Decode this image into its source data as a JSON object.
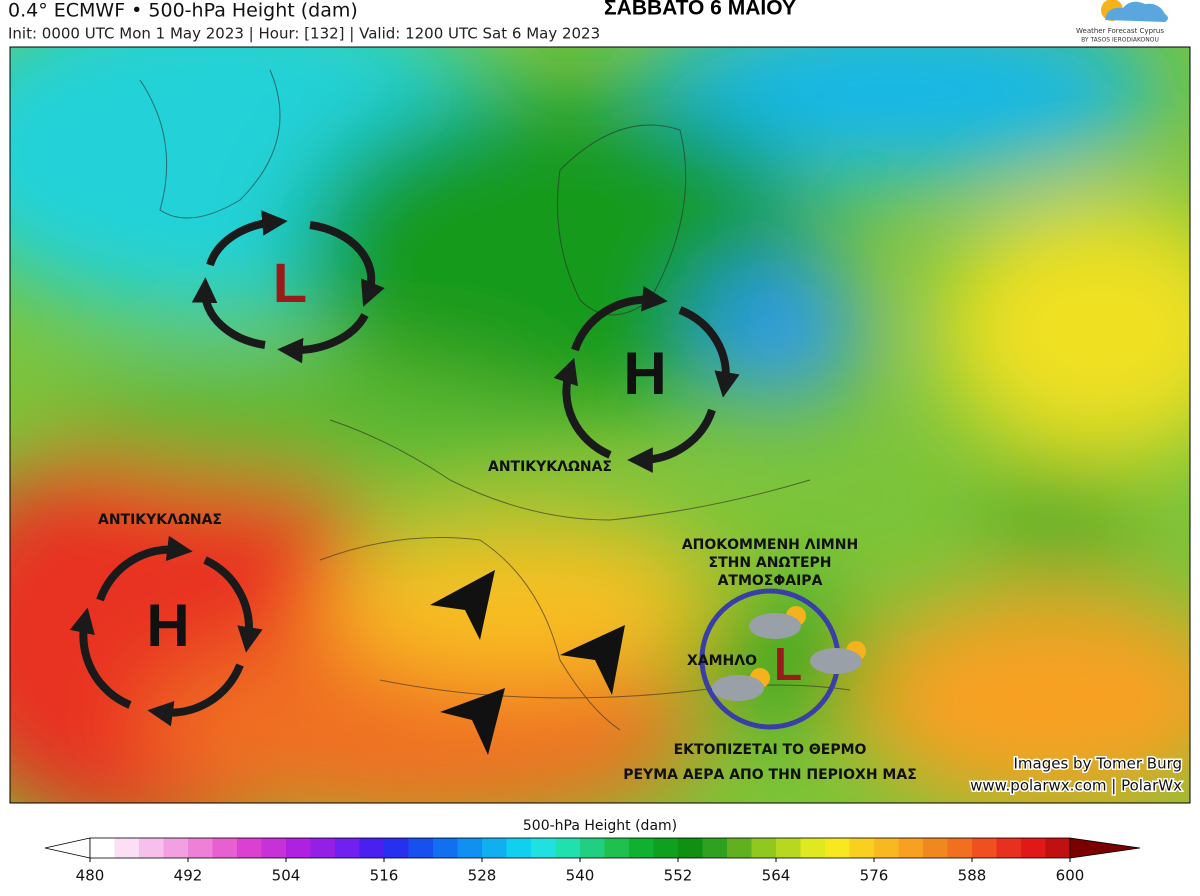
{
  "header": {
    "title": "0.4° ECMWF • 500-hPa Height (dam)",
    "subtitle": "Init: 0000 UTC Mon 1 May 2023 | Hour: [132] | Valid: 1200 UTC Sat 6 May 2023",
    "day": "ΣΑΒΒΑΤΟ 6 ΜΑΙΟΥ",
    "logo_name": "Weather Forecast Cyprus",
    "logo_author": "BY TASOS IERODIAKONOU"
  },
  "annotations": {
    "low_atlantic": "L",
    "high_scandinavia": "H",
    "high_scandinavia_label": "ΑΝΤΙΚΥΚΛΩΝΑΣ",
    "high_atlantic": "H",
    "high_atlantic_label": "ΑΝΤΙΚΥΚΛΩΝΑΣ",
    "cutoff_line1": "ΑΠΟΚΟΜΜΕΝΗ ΛΙΜΝΗ",
    "cutoff_line2": "ΣΤΗΝ ΑΝΩΤΕΡΗ",
    "cutoff_line3": "ΑΤΜΟΣΦΑΙΡΑ",
    "low_label": "ΧΑΜΗΛΟ",
    "low_cyprus": "L",
    "bottom_line1": "ΕΚΤΟΠΙΖΕΤΑΙ ΤΟ ΘΕΡΜΟ",
    "bottom_line2": "ΡΕΥΜΑ ΑΕΡΑ ΑΠΟ ΤΗΝ ΠΕΡΙΟΧΗ ΜΑΣ"
  },
  "credits": {
    "line1": "Images by Tomer Burg",
    "line2": "www.polarwx.com | PolarWx"
  },
  "colorbar": {
    "label": "500-hPa Height (dam)",
    "range": [
      480,
      600
    ],
    "ticks": [
      480,
      492,
      504,
      516,
      528,
      540,
      552,
      564,
      576,
      588,
      600
    ],
    "colors": [
      "#ffffff",
      "#fbe0f5",
      "#f7c0ec",
      "#f2a0e2",
      "#ee80d8",
      "#e860d0",
      "#dc40d0",
      "#c830d8",
      "#b020e0",
      "#9420e8",
      "#7020f0",
      "#4a20f0",
      "#2830f0",
      "#1850f0",
      "#1070f0",
      "#1090f0",
      "#10b0f0",
      "#10d0f0",
      "#20e0e0",
      "#20e0b0",
      "#20d080",
      "#20c050",
      "#10b030",
      "#10a020",
      "#109010",
      "#30a020",
      "#60b020",
      "#90c820",
      "#b8d820",
      "#e0e820",
      "#f8e820",
      "#f8d020",
      "#f8b820",
      "#f8a020",
      "#f08820",
      "#f07020",
      "#f05020",
      "#e83020",
      "#e01818",
      "#c01010"
    ],
    "extend_colors": [
      "#ffffff",
      "#7a0000"
    ]
  }
}
